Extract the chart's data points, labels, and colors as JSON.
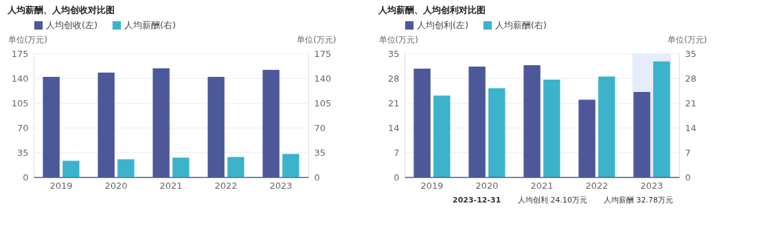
{
  "chart_data": [
    {
      "type": "bar",
      "title": "人均薪酬、人均创收对比图",
      "ylabel": "单位(万元)",
      "y2label": "单位(万元)",
      "categories": [
        "2019",
        "2020",
        "2021",
        "2022",
        "2023"
      ],
      "series": [
        {
          "name": "人均创收(左)",
          "color": "#4c5899",
          "values": [
            142,
            148,
            154,
            142,
            152
          ]
        },
        {
          "name": "人均薪酬(右)",
          "color": "#3cb3cb",
          "axis": "y2",
          "values": [
            23.1,
            25.2,
            27.6,
            28.5,
            32.78
          ]
        }
      ],
      "ylim": [
        0,
        175
      ],
      "yticks": [
        0,
        35,
        70,
        105,
        140,
        175
      ],
      "y2lim": [
        0,
        175
      ],
      "y2ticks": [
        0,
        35,
        70,
        105,
        140,
        175
      ],
      "grid": "y",
      "legend": "top left"
    },
    {
      "type": "bar",
      "title": "人均薪酬、人均创利对比图",
      "ylabel": "单位(万元)",
      "y2label": "单位(万元)",
      "categories": [
        "2019",
        "2020",
        "2021",
        "2022",
        "2023"
      ],
      "series": [
        {
          "name": "人均创利(左)",
          "color": "#4c5899",
          "values": [
            30.7,
            31.3,
            31.7,
            21.9,
            24.1
          ]
        },
        {
          "name": "人均薪酬(右)",
          "color": "#3cb3cb",
          "axis": "y2",
          "values": [
            23.1,
            25.2,
            27.6,
            28.5,
            32.78
          ]
        }
      ],
      "ylim": [
        0,
        35
      ],
      "yticks": [
        0,
        7,
        14,
        21,
        28,
        35
      ],
      "y2lim": [
        0,
        35
      ],
      "y2ticks": [
        0,
        7,
        14,
        21,
        28,
        35
      ],
      "grid": "y",
      "legend": "top left",
      "bands": [
        {
          "axis": "x",
          "from": "2023",
          "to": "2023",
          "color": "#e6ecfb"
        }
      ],
      "annotations": [
        "2023-12-31",
        "人均创利   24.10万元",
        "人均薪酬   32.78万元"
      ]
    }
  ]
}
